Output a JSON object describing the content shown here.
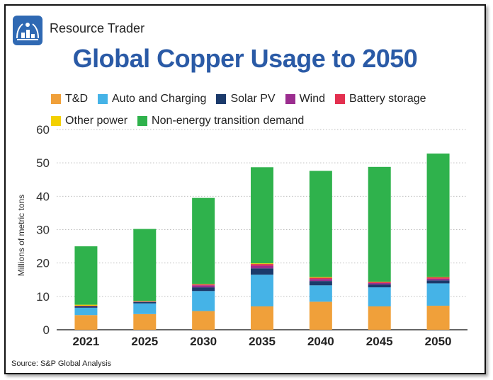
{
  "header": {
    "brand": "Resource Trader",
    "title": "Global Copper Usage to 2050",
    "logo_icon": "commodities-logo-icon"
  },
  "source": "Source: S&P Global Analysis",
  "colors": {
    "title": "#2a5aa6",
    "grid": "#bdbdbd"
  },
  "chart_data": {
    "type": "bar",
    "stacked": true,
    "title": "Global Copper Usage to 2050",
    "xlabel": "",
    "ylabel": "Millions of metric tons",
    "ylim": [
      0,
      60
    ],
    "yticks": [
      0,
      10,
      20,
      30,
      40,
      50,
      60
    ],
    "grid": true,
    "legend_position": "top",
    "categories": [
      "2021",
      "2025",
      "2030",
      "2035",
      "2040",
      "2045",
      "2050"
    ],
    "series": [
      {
        "name": "T&D",
        "color": "#f0a03a",
        "values": [
          4.4,
          4.7,
          5.6,
          7.0,
          8.4,
          7.0,
          7.2
        ]
      },
      {
        "name": "Auto and Charging",
        "color": "#45b3e7",
        "values": [
          2.2,
          3.2,
          6.0,
          9.5,
          4.9,
          5.7,
          6.7
        ]
      },
      {
        "name": "Solar PV",
        "color": "#1b3a6b",
        "values": [
          0.4,
          0.4,
          1.1,
          1.9,
          1.3,
          0.9,
          0.9
        ]
      },
      {
        "name": "Wind",
        "color": "#9b2d8f",
        "values": [
          0.1,
          0.1,
          0.6,
          0.8,
          0.6,
          0.4,
          0.5
        ]
      },
      {
        "name": "Battery storage",
        "color": "#e3304f",
        "values": [
          0.1,
          0.1,
          0.3,
          0.5,
          0.4,
          0.3,
          0.4
        ]
      },
      {
        "name": "Other power",
        "color": "#f3d000",
        "values": [
          0.3,
          0.1,
          0.1,
          0.2,
          0.2,
          0.1,
          0.1
        ]
      },
      {
        "name": "Non-energy transition demand",
        "color": "#2fb24c",
        "values": [
          17.5,
          21.6,
          25.8,
          28.8,
          31.8,
          34.4,
          37.0
        ]
      }
    ]
  }
}
